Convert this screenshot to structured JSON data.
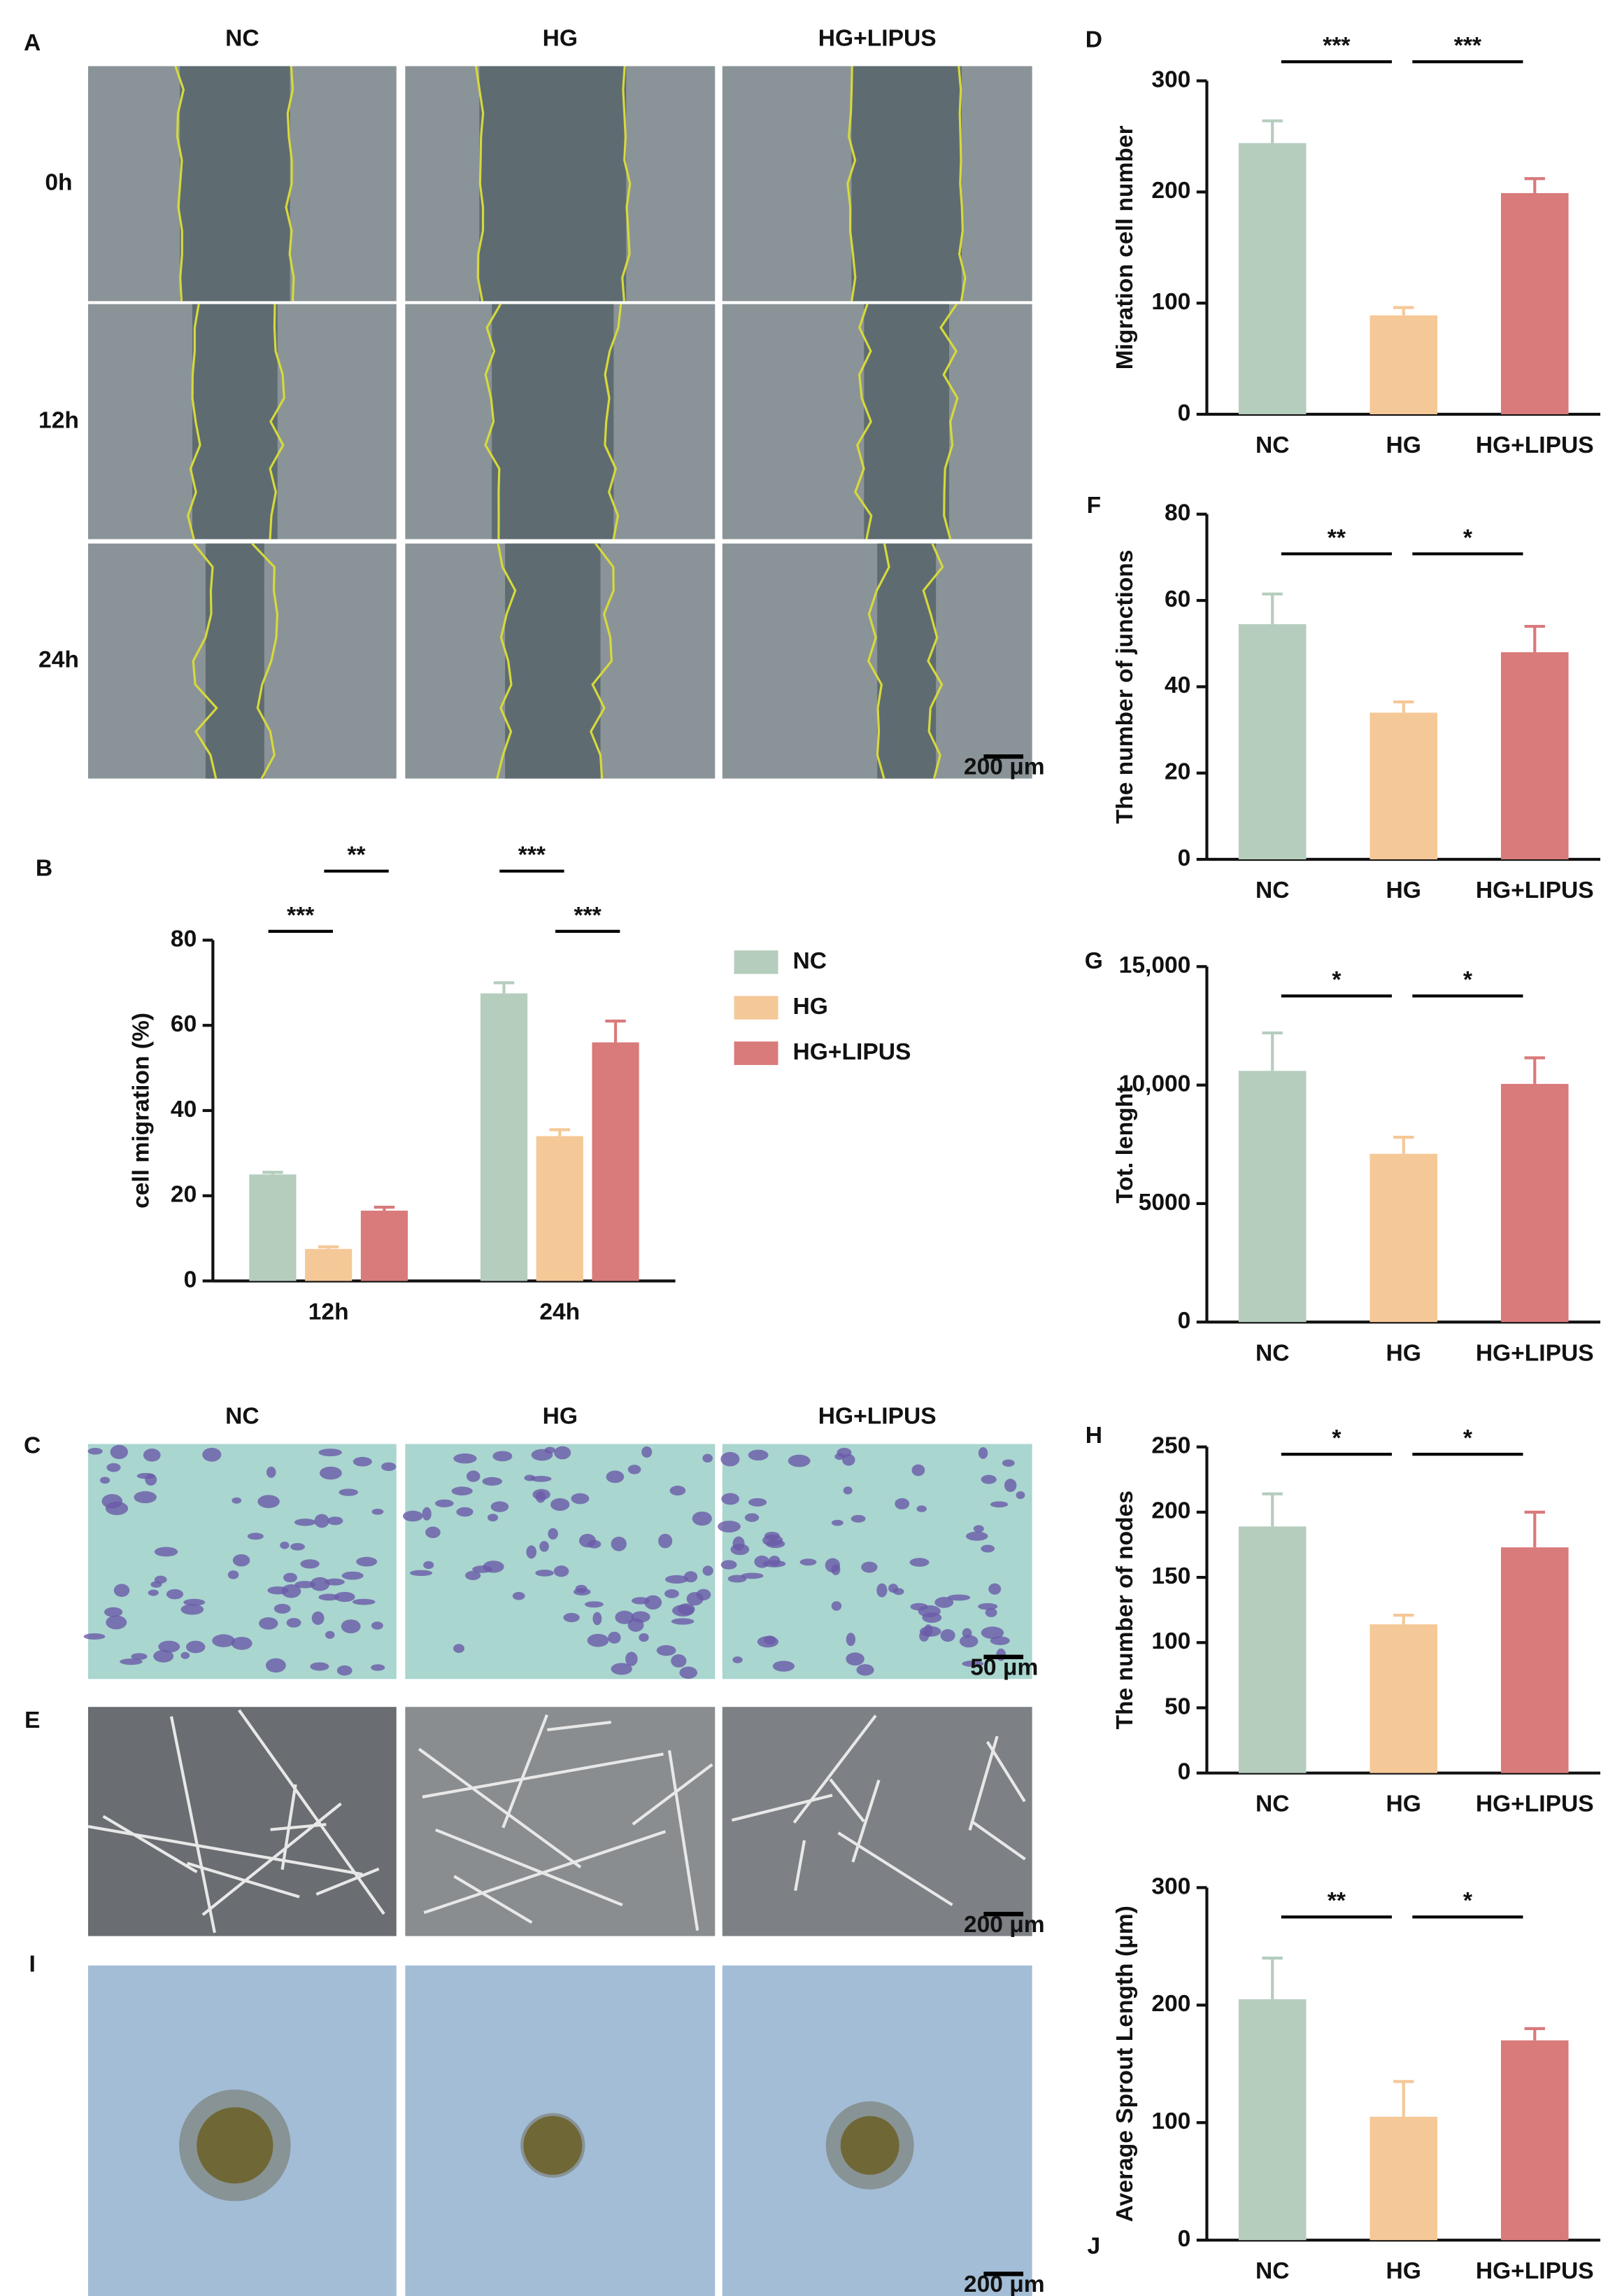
{
  "figure": {
    "photo_panels": [
      {
        "label": "A",
        "columns": [
          "NC",
          "HG",
          "HG+LIPUS"
        ],
        "rows": [
          "0h",
          "12h",
          "24h"
        ],
        "scale_bar": "200 μm"
      },
      {
        "label": "C",
        "columns": [
          "NC",
          "HG",
          "HG+LIPUS"
        ],
        "scale_bar": "50 μm"
      },
      {
        "label": "E",
        "scale_bar": "200 μm"
      },
      {
        "label": "I",
        "scale_bar": "200 μm"
      }
    ]
  },
  "chart_data": [
    {
      "type": "bar",
      "panel_label": "B",
      "ylabel": "cell migration (%)",
      "categories": [
        "12h",
        "24h"
      ],
      "series": [
        {
          "name": "NC",
          "color": "#b5cdbd",
          "values": [
            25,
            67.5
          ],
          "errors": [
            0.5,
            2.5
          ]
        },
        {
          "name": "HG",
          "color": "#f5c897",
          "values": [
            7.5,
            34
          ],
          "errors": [
            0.5,
            1.5
          ]
        },
        {
          "name": "HG+LIPUS",
          "color": "#d97a7b",
          "values": [
            16.5,
            56
          ],
          "errors": [
            0.8,
            5
          ]
        }
      ],
      "ylim": [
        0,
        80
      ],
      "yticks": [
        0,
        20,
        40,
        60,
        80
      ],
      "annotations": [
        {
          "text": "***",
          "category": 0,
          "from": 0,
          "to": 1
        },
        {
          "text": "**",
          "category": 0,
          "from": 1,
          "to": 2
        },
        {
          "text": "***",
          "category": 1,
          "from": 0,
          "to": 1
        },
        {
          "text": "***",
          "category": 1,
          "from": 1,
          "to": 2
        }
      ]
    },
    {
      "type": "bar",
      "panel_label": "D",
      "ylabel": "Migration cell number",
      "categories": [
        "NC",
        "HG",
        "HG+LIPUS"
      ],
      "values": [
        244,
        89,
        199
      ],
      "errors": [
        20,
        7,
        13
      ],
      "colors": [
        "#b5cdbd",
        "#f5c897",
        "#d97a7b"
      ],
      "ylim": [
        0,
        300
      ],
      "yticks": [
        0,
        100,
        200,
        300
      ],
      "annotations": [
        {
          "text": "***",
          "from": 0,
          "to": 1
        },
        {
          "text": "***",
          "from": 1,
          "to": 2
        }
      ]
    },
    {
      "type": "bar",
      "panel_label": "F",
      "ylabel": "The number of junctions",
      "categories": [
        "NC",
        "HG",
        "HG+LIPUS"
      ],
      "values": [
        54.5,
        34,
        48
      ],
      "errors": [
        7,
        2.5,
        6
      ],
      "colors": [
        "#b5cdbd",
        "#f5c897",
        "#d97a7b"
      ],
      "ylim": [
        0,
        80
      ],
      "yticks": [
        0,
        20,
        40,
        60,
        80
      ],
      "annotations": [
        {
          "text": "**",
          "from": 0,
          "to": 1
        },
        {
          "text": "*",
          "from": 1,
          "to": 2
        }
      ]
    },
    {
      "type": "bar",
      "panel_label": "G",
      "ylabel": "Tot. lenght",
      "categories": [
        "NC",
        "HG",
        "HG+LIPUS"
      ],
      "values": [
        10600,
        7100,
        10050
      ],
      "errors": [
        1600,
        700,
        1100
      ],
      "colors": [
        "#b5cdbd",
        "#f5c897",
        "#d97a7b"
      ],
      "ylim": [
        0,
        15000
      ],
      "yticks": [
        0,
        5000,
        {
          "value": 10000,
          "label": "10,000"
        },
        {
          "value": 15000,
          "label": "15,000"
        }
      ],
      "annotations": [
        {
          "text": "*",
          "from": 0,
          "to": 1
        },
        {
          "text": "*",
          "from": 1,
          "to": 2
        }
      ]
    },
    {
      "type": "bar",
      "panel_label": "H",
      "ylabel": "The number of nodes",
      "categories": [
        "NC",
        "HG",
        "HG+LIPUS"
      ],
      "values": [
        189,
        114,
        173
      ],
      "errors": [
        25,
        7,
        27
      ],
      "colors": [
        "#b5cdbd",
        "#f5c897",
        "#d97a7b"
      ],
      "ylim": [
        0,
        250
      ],
      "yticks": [
        0,
        50,
        100,
        150,
        200,
        250
      ],
      "annotations": [
        {
          "text": "*",
          "from": 0,
          "to": 1
        },
        {
          "text": "*",
          "from": 1,
          "to": 2
        }
      ]
    },
    {
      "type": "bar",
      "panel_label": "J",
      "ylabel": "Average Sprout Length (μm)",
      "categories": [
        "NC",
        "HG",
        "HG+LIPUS"
      ],
      "values": [
        205,
        105,
        170
      ],
      "errors": [
        35,
        30,
        10
      ],
      "colors": [
        "#b5cdbd",
        "#f5c897",
        "#d97a7b"
      ],
      "ylim": [
        0,
        300
      ],
      "yticks": [
        0,
        100,
        200,
        300
      ],
      "annotations": [
        {
          "text": "**",
          "from": 0,
          "to": 1
        },
        {
          "text": "*",
          "from": 1,
          "to": 2
        }
      ]
    }
  ]
}
